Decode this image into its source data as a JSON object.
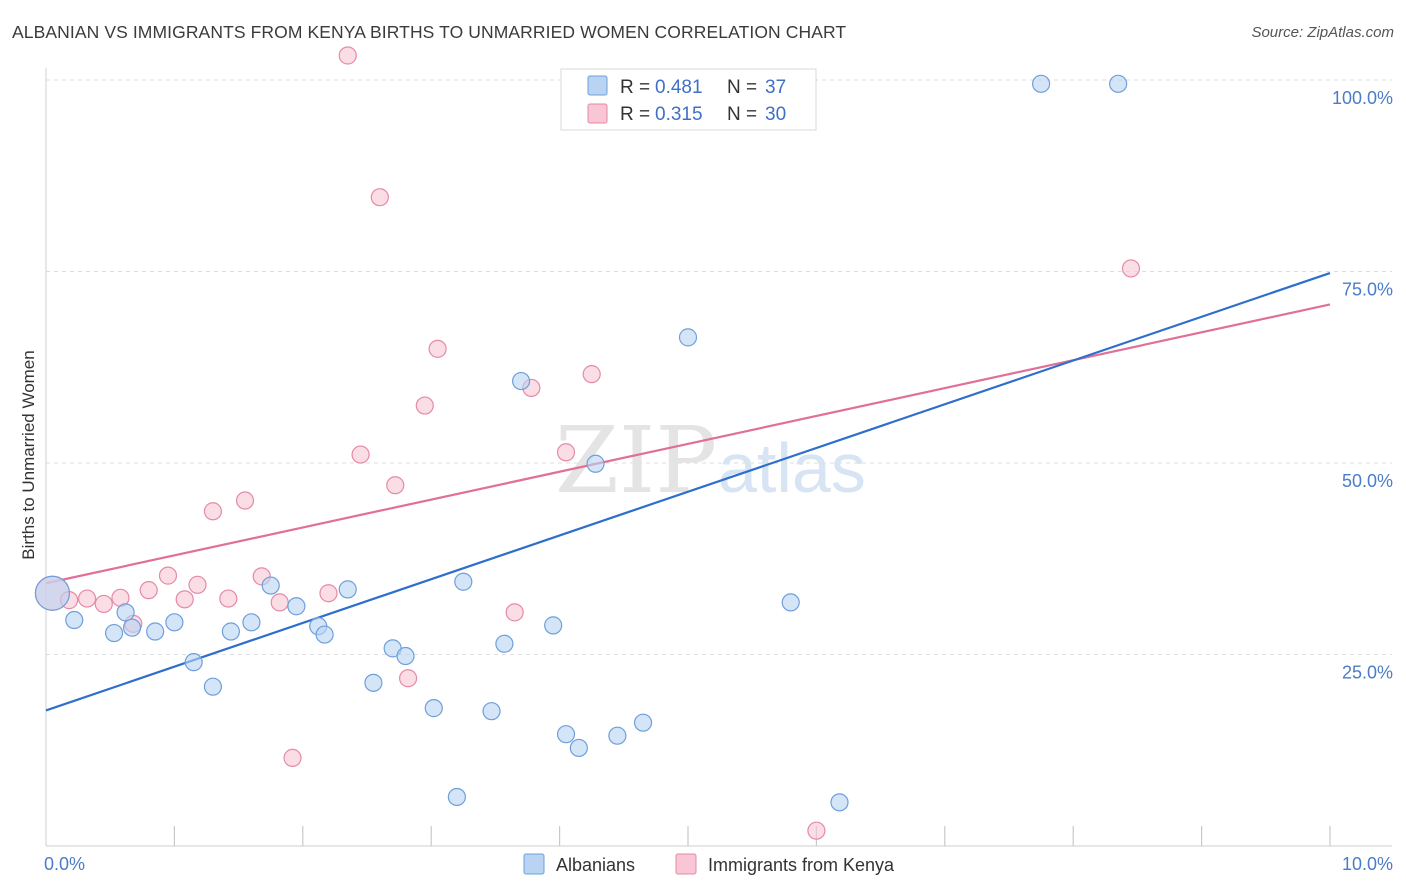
{
  "title": "ALBANIAN VS IMMIGRANTS FROM KENYA BIRTHS TO UNMARRIED WOMEN CORRELATION CHART",
  "source": "Source: ZipAtlas.com",
  "watermark": {
    "zip": "ZIP",
    "atlas": "atlas"
  },
  "colors": {
    "albanians_fill": "#b9d3f3",
    "albanians_stroke": "#6e9fdb",
    "albanians_line": "#2f6fcc",
    "kenya_fill": "#f8c6d4",
    "kenya_stroke": "#e58aa7",
    "kenya_line": "#e07098",
    "grid": "#dedede",
    "axis_text": "#4a7cc9"
  },
  "legend": {
    "rows": [
      {
        "r_label": "R = ",
        "r_value": "0.481",
        "n_label": "N = ",
        "n_value": "37"
      },
      {
        "r_label": "R = ",
        "r_value": "0.315",
        "n_label": "N = ",
        "n_value": "30"
      }
    ]
  },
  "chart_data": {
    "type": "scatter",
    "title": "ALBANIAN VS IMMIGRANTS FROM KENYA BIRTHS TO UNMARRIED WOMEN CORRELATION CHART",
    "xlabel": "",
    "ylabel": "Births to Unmarried Women",
    "xlim": [
      0,
      10
    ],
    "ylim": [
      0,
      100
    ],
    "x_tick_labels": [
      "0.0%",
      "10.0%"
    ],
    "y_ticks": [
      25,
      50,
      75,
      100
    ],
    "y_tick_labels": [
      "25.0%",
      "50.0%",
      "75.0%",
      "100.0%"
    ],
    "grid": true,
    "legend_position": "top-center",
    "series": [
      {
        "name": "Albanians",
        "color": "#6e9fdb",
        "r": 0.481,
        "n": 37,
        "trend": {
          "x0": 0.0,
          "y0": 17.7,
          "x1": 10.0,
          "y1": 74.8
        },
        "points": [
          {
            "x": 0.05,
            "y": 33.0,
            "big": true
          },
          {
            "x": 0.22,
            "y": 29.5
          },
          {
            "x": 0.62,
            "y": 30.5
          },
          {
            "x": 0.53,
            "y": 27.8
          },
          {
            "x": 0.67,
            "y": 28.5
          },
          {
            "x": 0.85,
            "y": 28.0
          },
          {
            "x": 1.0,
            "y": 29.2
          },
          {
            "x": 1.15,
            "y": 24.0
          },
          {
            "x": 1.3,
            "y": 20.8
          },
          {
            "x": 1.44,
            "y": 28.0
          },
          {
            "x": 1.6,
            "y": 29.2
          },
          {
            "x": 1.75,
            "y": 34.0
          },
          {
            "x": 1.95,
            "y": 31.3
          },
          {
            "x": 2.12,
            "y": 28.7
          },
          {
            "x": 2.17,
            "y": 27.6
          },
          {
            "x": 2.35,
            "y": 33.5
          },
          {
            "x": 2.55,
            "y": 21.3
          },
          {
            "x": 2.7,
            "y": 25.8
          },
          {
            "x": 2.8,
            "y": 24.8
          },
          {
            "x": 3.02,
            "y": 18.0
          },
          {
            "x": 3.2,
            "y": 6.4
          },
          {
            "x": 3.25,
            "y": 34.5
          },
          {
            "x": 3.47,
            "y": 17.6
          },
          {
            "x": 3.57,
            "y": 26.4
          },
          {
            "x": 3.7,
            "y": 60.7
          },
          {
            "x": 3.95,
            "y": 28.8
          },
          {
            "x": 4.05,
            "y": 14.6
          },
          {
            "x": 4.15,
            "y": 12.8
          },
          {
            "x": 4.28,
            "y": 49.9
          },
          {
            "x": 4.45,
            "y": 14.4
          },
          {
            "x": 4.65,
            "y": 16.1
          },
          {
            "x": 4.95,
            "y": 99.5
          },
          {
            "x": 5.0,
            "y": 66.4
          },
          {
            "x": 5.8,
            "y": 31.8
          },
          {
            "x": 6.18,
            "y": 5.7
          },
          {
            "x": 7.75,
            "y": 99.5
          },
          {
            "x": 8.35,
            "y": 99.5
          }
        ]
      },
      {
        "name": "Immigrants from Kenya",
        "color": "#e58aa7",
        "r": 0.315,
        "n": 30,
        "trend": {
          "x0": 0.0,
          "y0": 34.3,
          "x1": 10.0,
          "y1": 70.7
        },
        "points": [
          {
            "x": 0.05,
            "y": 33.0,
            "big": true
          },
          {
            "x": 0.18,
            "y": 32.1
          },
          {
            "x": 0.32,
            "y": 32.3
          },
          {
            "x": 0.45,
            "y": 31.6
          },
          {
            "x": 0.58,
            "y": 32.4
          },
          {
            "x": 0.68,
            "y": 29.0
          },
          {
            "x": 0.8,
            "y": 33.4
          },
          {
            "x": 0.95,
            "y": 35.3
          },
          {
            "x": 1.08,
            "y": 32.2
          },
          {
            "x": 1.18,
            "y": 34.1
          },
          {
            "x": 1.3,
            "y": 43.7
          },
          {
            "x": 1.42,
            "y": 32.3
          },
          {
            "x": 1.55,
            "y": 45.1
          },
          {
            "x": 1.68,
            "y": 35.2
          },
          {
            "x": 1.82,
            "y": 31.8
          },
          {
            "x": 1.92,
            "y": 11.5
          },
          {
            "x": 2.2,
            "y": 33.0
          },
          {
            "x": 2.35,
            "y": 103.2
          },
          {
            "x": 2.45,
            "y": 51.1
          },
          {
            "x": 2.6,
            "y": 84.7
          },
          {
            "x": 2.72,
            "y": 47.1
          },
          {
            "x": 2.82,
            "y": 21.9
          },
          {
            "x": 2.95,
            "y": 57.5
          },
          {
            "x": 3.05,
            "y": 64.9
          },
          {
            "x": 3.65,
            "y": 30.5
          },
          {
            "x": 3.78,
            "y": 59.8
          },
          {
            "x": 4.05,
            "y": 51.4
          },
          {
            "x": 4.25,
            "y": 61.6
          },
          {
            "x": 6.0,
            "y": 2.0
          },
          {
            "x": 8.45,
            "y": 75.4
          }
        ]
      }
    ]
  }
}
